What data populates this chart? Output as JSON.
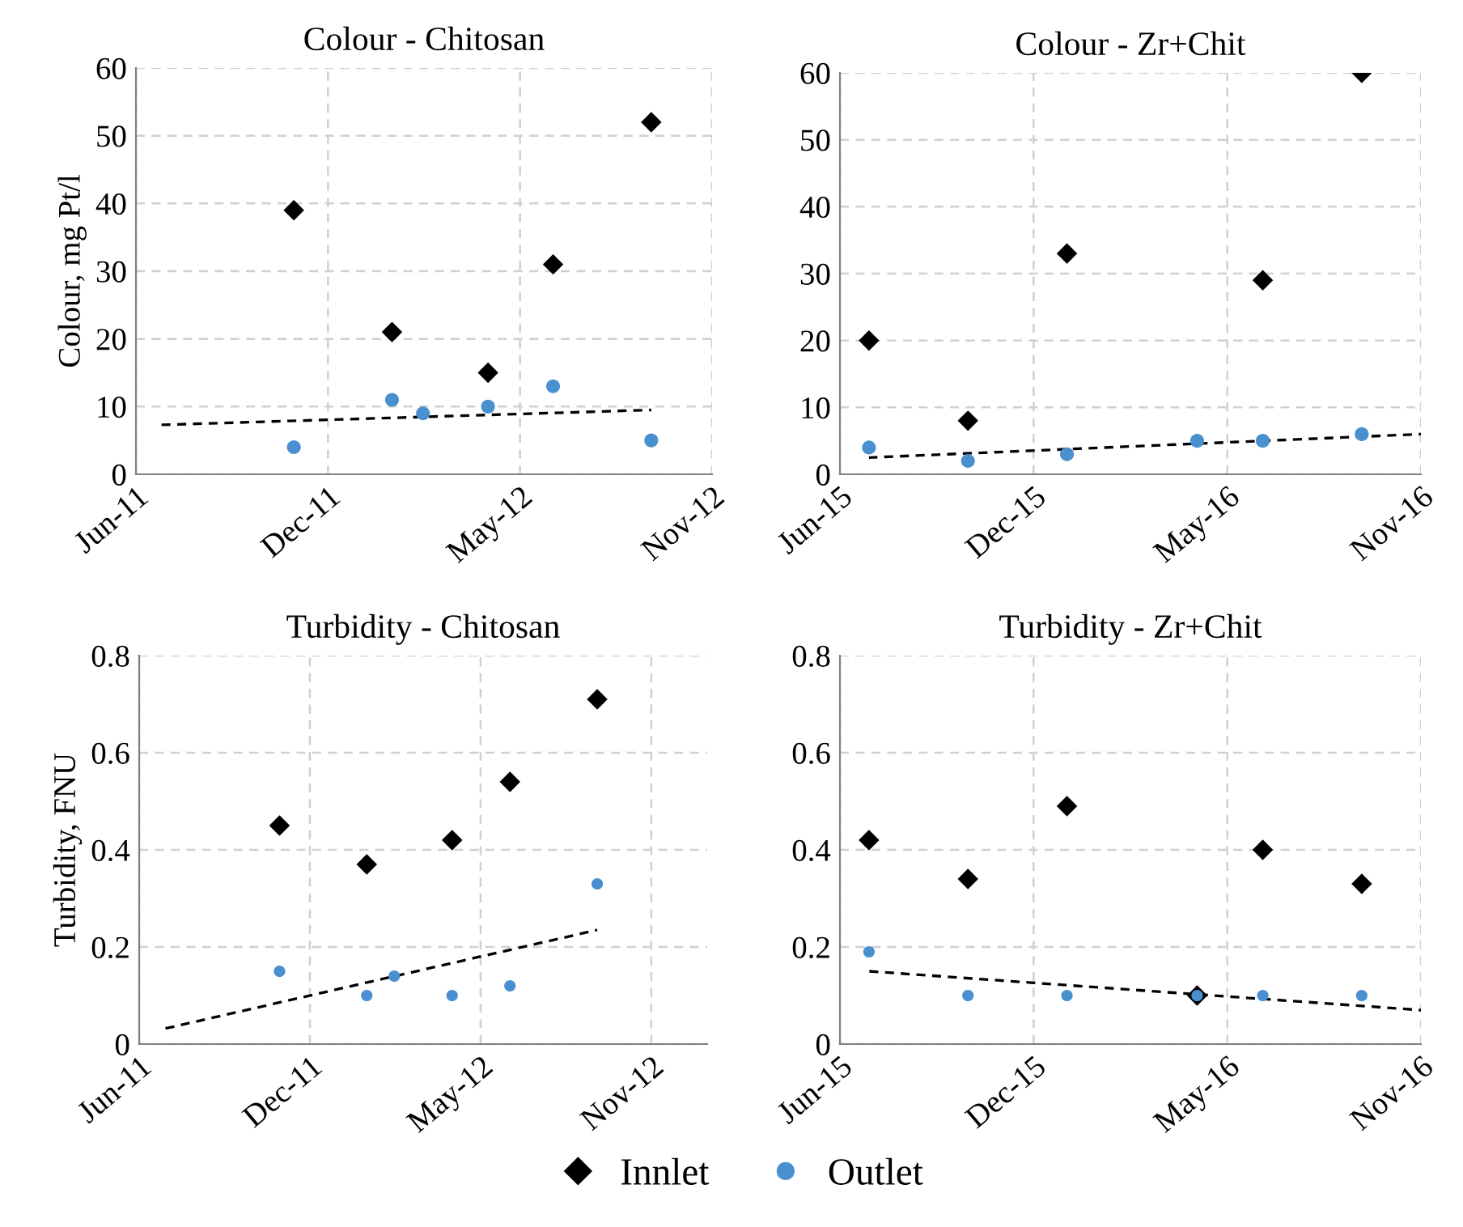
{
  "chart_data": [
    {
      "type": "scatter",
      "title": "Colour - Chitosan",
      "ylabel": "Colour, mg Pt/l",
      "grid": true,
      "legend": "bottom",
      "xlim": [
        "2011-06-06",
        "2012-11-27"
      ],
      "xticks": [
        {
          "value": "2011-06-06",
          "label": "Jun-11"
        },
        {
          "value": "2011-12-03",
          "label": "Dec-11"
        },
        {
          "value": "2012-05-31",
          "label": "May-12"
        },
        {
          "value": "2012-11-27",
          "label": "Nov-12"
        }
      ],
      "ylim": [
        0,
        60
      ],
      "yticks": [
        0,
        10,
        20,
        30,
        40,
        50,
        60
      ],
      "series": [
        {
          "name": "Innlet",
          "color": "#000000",
          "marker": "diamond",
          "x": [
            "2011-11",
            "2012-02",
            "2012-05",
            "2012-07",
            "2012-10"
          ],
          "values": [
            39,
            21,
            15,
            31,
            52
          ]
        },
        {
          "name": "Outlet",
          "color": "#4a90d0",
          "marker": "circle",
          "x": [
            "2011-11",
            "2012-02",
            "2012-03",
            "2012-05",
            "2012-07",
            "2012-10"
          ],
          "values": [
            4,
            11,
            9,
            10,
            13,
            5
          ]
        },
        {
          "type": "line",
          "color": "#000000",
          "marker": "none",
          "line_style": "dashed",
          "x": [
            "2011-06-30",
            "2012-10-01"
          ],
          "values": [
            7.3,
            9.5
          ]
        }
      ]
    },
    {
      "type": "scatter",
      "title": "Colour - Zr+Chit",
      "grid": true,
      "legend": "bottom",
      "xlim": [
        "2015-06-04",
        "2016-11-25"
      ],
      "xticks": [
        {
          "value": "2015-06-04",
          "label": "Jun-15"
        },
        {
          "value": "2015-12-01",
          "label": "Dec-15"
        },
        {
          "value": "2016-05-29",
          "label": "May-16"
        },
        {
          "value": "2016-11-25",
          "label": "Nov-16"
        }
      ],
      "ylim": [
        0,
        60
      ],
      "yticks": [
        0,
        10,
        20,
        30,
        40,
        50,
        60
      ],
      "series": [
        {
          "name": "Innlet",
          "color": "#000000",
          "marker": "diamond",
          "x": [
            "2015-07",
            "2015-10",
            "2016-01",
            "2016-07",
            "2016-10"
          ],
          "values": [
            20,
            8,
            33,
            29,
            60
          ]
        },
        {
          "name": "Outlet",
          "color": "#4a90d0",
          "marker": "circle",
          "x": [
            "2015-07",
            "2015-10",
            "2016-01",
            "2016-05",
            "2016-07",
            "2016-10"
          ],
          "values": [
            4,
            2,
            3,
            5,
            5,
            6
          ]
        },
        {
          "type": "line",
          "color": "#000000",
          "marker": "none",
          "line_style": "dashed",
          "x": [
            "2015-07-01",
            "2016-11-25"
          ],
          "values": [
            2.5,
            6
          ]
        }
      ]
    },
    {
      "type": "scatter",
      "title": "Turbidity - Chitosan",
      "ylabel": "Turbidity, FNU",
      "grid": true,
      "legend": "bottom",
      "xlim": [
        "2011-06-06",
        "2013-01-25"
      ],
      "xticks": [
        {
          "value": "2011-06-06",
          "label": "Jun-11"
        },
        {
          "value": "2011-12-03",
          "label": "Dec-11"
        },
        {
          "value": "2012-05-31",
          "label": "May-12"
        },
        {
          "value": "2012-11-27",
          "label": "Nov-12"
        }
      ],
      "ylim": [
        0,
        0.8
      ],
      "yticks": [
        0,
        0.2,
        0.4,
        0.6,
        0.8
      ],
      "series": [
        {
          "name": "Innlet",
          "color": "#000000",
          "marker": "diamond",
          "x": [
            "2011-11",
            "2012-02",
            "2012-05",
            "2012-07",
            "2012-10"
          ],
          "values": [
            0.45,
            0.37,
            0.42,
            0.54,
            0.71
          ]
        },
        {
          "name": "Outlet",
          "color": "#4a90d0",
          "marker": "circle",
          "x": [
            "2011-11",
            "2012-02",
            "2012-03",
            "2012-05",
            "2012-07",
            "2012-10"
          ],
          "values": [
            0.15,
            0.1,
            0.14,
            0.1,
            0.12,
            0.33
          ]
        },
        {
          "type": "line",
          "color": "#000000",
          "marker": "none",
          "line_style": "dashed",
          "x": [
            "2011-06-29",
            "2012-10-01"
          ],
          "values": [
            0.03,
            0.235
          ]
        }
      ]
    },
    {
      "type": "scatter",
      "title": "Turbidity - Zr+Chit",
      "grid": true,
      "legend": "bottom",
      "xlim": [
        "2015-06-04",
        "2016-11-25"
      ],
      "xticks": [
        {
          "value": "2015-06-04",
          "label": "Jun-15"
        },
        {
          "value": "2015-12-01",
          "label": "Dec-15"
        },
        {
          "value": "2016-05-29",
          "label": "May-16"
        },
        {
          "value": "2016-11-25",
          "label": "Nov-16"
        }
      ],
      "ylim": [
        0,
        0.8
      ],
      "yticks": [
        0,
        0.2,
        0.4,
        0.6,
        0.8
      ],
      "series": [
        {
          "name": "Innlet",
          "color": "#000000",
          "marker": "diamond",
          "x": [
            "2015-07",
            "2015-10",
            "2016-01",
            "2016-05",
            "2016-07",
            "2016-10"
          ],
          "values": [
            0.42,
            0.34,
            0.49,
            0.1,
            0.4,
            0.33
          ]
        },
        {
          "name": "Outlet",
          "color": "#4a90d0",
          "marker": "circle",
          "x": [
            "2015-07",
            "2015-10",
            "2016-01",
            "2016-05",
            "2016-07",
            "2016-10"
          ],
          "values": [
            0.19,
            0.1,
            0.1,
            0.1,
            0.1,
            0.1
          ]
        },
        {
          "type": "line",
          "color": "#000000",
          "marker": "none",
          "line_style": "dashed",
          "x": [
            "2015-07-01",
            "2016-11-25"
          ],
          "values": [
            0.15,
            0.07
          ]
        }
      ]
    }
  ]
}
